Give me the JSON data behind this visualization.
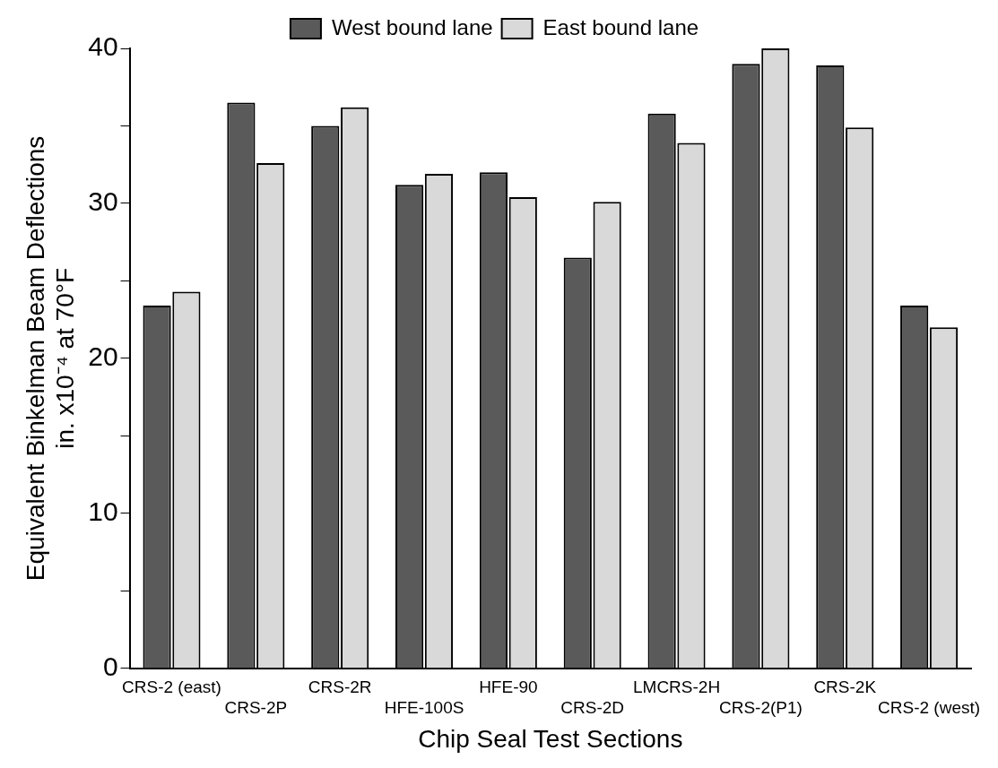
{
  "chart_data": {
    "type": "bar",
    "xlabel": "Chip Seal Test Sections",
    "ylabel": "Equivalent Binkelman Beam Deflections\nin. x10⁻⁴ at 70°F",
    "categories": [
      "CRS-2 (east)",
      "CRS-2P",
      "CRS-2R",
      "HFE-100S",
      "HFE-90",
      "CRS-2D",
      "LMCRS-2H",
      "CRS-2(P1)",
      "CRS-2K",
      "CRS-2 (west)"
    ],
    "series": [
      {
        "name": "West bound lane",
        "color": "#5a5a5a",
        "values": [
          23.4,
          36.5,
          35.0,
          31.2,
          32.0,
          26.5,
          35.8,
          39.0,
          38.9,
          23.4
        ]
      },
      {
        "name": "East bound lane",
        "color": "#d9d9d9",
        "values": [
          24.3,
          32.6,
          36.2,
          31.9,
          30.4,
          30.1,
          33.9,
          40.0,
          34.9,
          22.0
        ]
      }
    ],
    "ylim": [
      0,
      40
    ],
    "yticks": [
      0,
      {
        "value": 5,
        "label": null
      },
      10,
      {
        "value": 15,
        "label": null
      },
      20,
      {
        "value": 25,
        "label": null
      },
      30,
      {
        "value": 35,
        "label": null
      },
      40
    ],
    "grid": false,
    "legend": "top"
  }
}
